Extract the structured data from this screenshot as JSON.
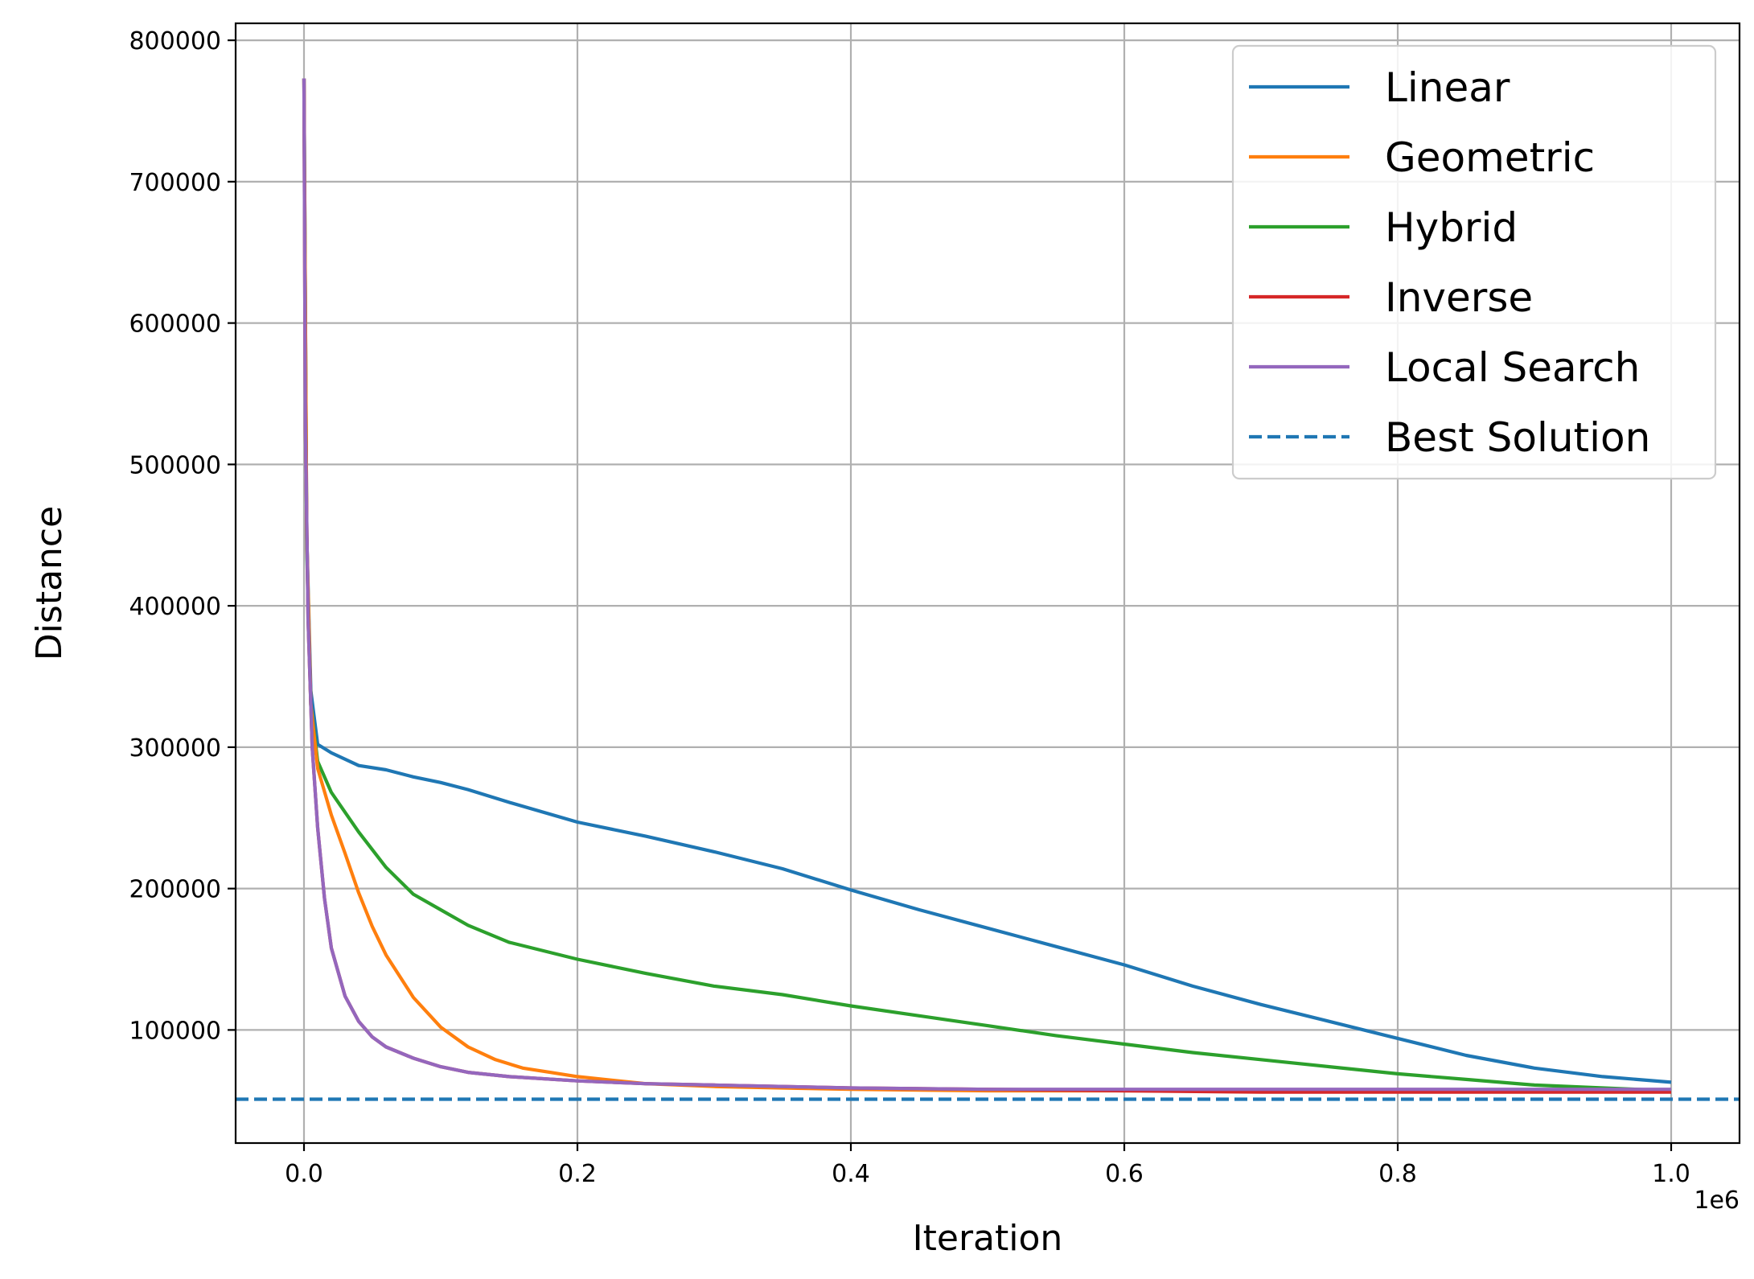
{
  "chart_data": {
    "type": "line",
    "title": "",
    "xlabel": "Iteration",
    "ylabel": "Distance",
    "x_offset_label": "1e6",
    "xlim": [
      -50000,
      1050000
    ],
    "ylim": [
      20000,
      812000
    ],
    "x_ticks": [
      0,
      200000,
      400000,
      600000,
      800000,
      1000000
    ],
    "x_tick_labels": [
      "0.0",
      "0.2",
      "0.4",
      "0.6",
      "0.8",
      "1.0"
    ],
    "y_ticks": [
      100000,
      200000,
      300000,
      400000,
      500000,
      600000,
      700000,
      800000
    ],
    "y_tick_labels": [
      "100000",
      "200000",
      "300000",
      "400000",
      "500000",
      "600000",
      "700000",
      "800000"
    ],
    "grid": true,
    "legend_position": "top-right",
    "series": [
      {
        "name": "Linear",
        "color": "#1f77b4",
        "style": "solid",
        "x": [
          0,
          2000,
          5000,
          10000,
          20000,
          40000,
          60000,
          80000,
          100000,
          120000,
          150000,
          200000,
          250000,
          300000,
          350000,
          400000,
          450000,
          500000,
          550000,
          600000,
          650000,
          700000,
          750000,
          800000,
          850000,
          900000,
          950000,
          1000000
        ],
        "y": [
          773000,
          450000,
          340000,
          302000,
          296000,
          287000,
          284000,
          279000,
          275000,
          270000,
          261000,
          247000,
          237000,
          226000,
          214000,
          199000,
          185000,
          172000,
          159000,
          146000,
          131000,
          118000,
          106000,
          94000,
          82000,
          73000,
          67000,
          63000
        ]
      },
      {
        "name": "Geometric",
        "color": "#ff7f0e",
        "style": "solid",
        "x": [
          0,
          2000,
          5000,
          10000,
          20000,
          30000,
          40000,
          50000,
          60000,
          80000,
          100000,
          120000,
          140000,
          160000,
          180000,
          200000,
          250000,
          300000,
          350000,
          400000,
          500000,
          600000,
          700000,
          800000,
          900000,
          1000000
        ],
        "y": [
          773000,
          450000,
          330000,
          285000,
          252000,
          225000,
          197000,
          173000,
          153000,
          123000,
          102000,
          88000,
          79000,
          73000,
          70000,
          67000,
          62000,
          60000,
          59000,
          58000,
          57000,
          57000,
          57000,
          57000,
          57000,
          57000
        ]
      },
      {
        "name": "Hybrid",
        "color": "#2ca02c",
        "style": "solid",
        "x": [
          0,
          2000,
          5000,
          10000,
          20000,
          40000,
          60000,
          80000,
          100000,
          120000,
          150000,
          200000,
          250000,
          300000,
          350000,
          400000,
          450000,
          500000,
          550000,
          600000,
          650000,
          700000,
          750000,
          800000,
          850000,
          900000,
          950000,
          1000000
        ],
        "y": [
          773000,
          440000,
          330000,
          290000,
          268000,
          240000,
          215000,
          196000,
          185000,
          174000,
          162000,
          150000,
          140000,
          131000,
          125000,
          117000,
          110000,
          103000,
          96000,
          90000,
          84000,
          79000,
          74000,
          69000,
          65000,
          61000,
          59000,
          57000
        ]
      },
      {
        "name": "Inverse",
        "color": "#d62728",
        "style": "solid",
        "x": [
          0,
          1000,
          3000,
          6000,
          10000,
          15000,
          20000,
          30000,
          40000,
          50000,
          60000,
          80000,
          100000,
          120000,
          150000,
          200000,
          250000,
          300000,
          400000,
          500000,
          600000,
          700000,
          800000,
          900000,
          1000000
        ],
        "y": [
          773000,
          530000,
          390000,
          300000,
          243000,
          193000,
          158000,
          124000,
          106000,
          95000,
          88000,
          80000,
          74000,
          70000,
          67000,
          64000,
          62000,
          61000,
          59000,
          58000,
          57000,
          56000,
          56000,
          56000,
          56000
        ]
      },
      {
        "name": "Local Search",
        "color": "#9467bd",
        "style": "solid",
        "x": [
          0,
          1000,
          3000,
          6000,
          10000,
          15000,
          20000,
          30000,
          40000,
          50000,
          60000,
          80000,
          100000,
          120000,
          150000,
          200000,
          250000,
          300000,
          400000,
          500000,
          600000,
          700000,
          800000,
          900000,
          1000000
        ],
        "y": [
          773000,
          530000,
          390000,
          300000,
          243000,
          193000,
          158000,
          124000,
          106000,
          95000,
          88000,
          80000,
          74000,
          70000,
          67000,
          64000,
          62000,
          61000,
          59000,
          58000,
          58000,
          58000,
          58000,
          58000,
          58000
        ]
      },
      {
        "name": "Best Solution",
        "color": "#1f77b4",
        "style": "dashed",
        "x": [
          -50000,
          1050000
        ],
        "y": [
          51000,
          51000
        ]
      }
    ]
  }
}
